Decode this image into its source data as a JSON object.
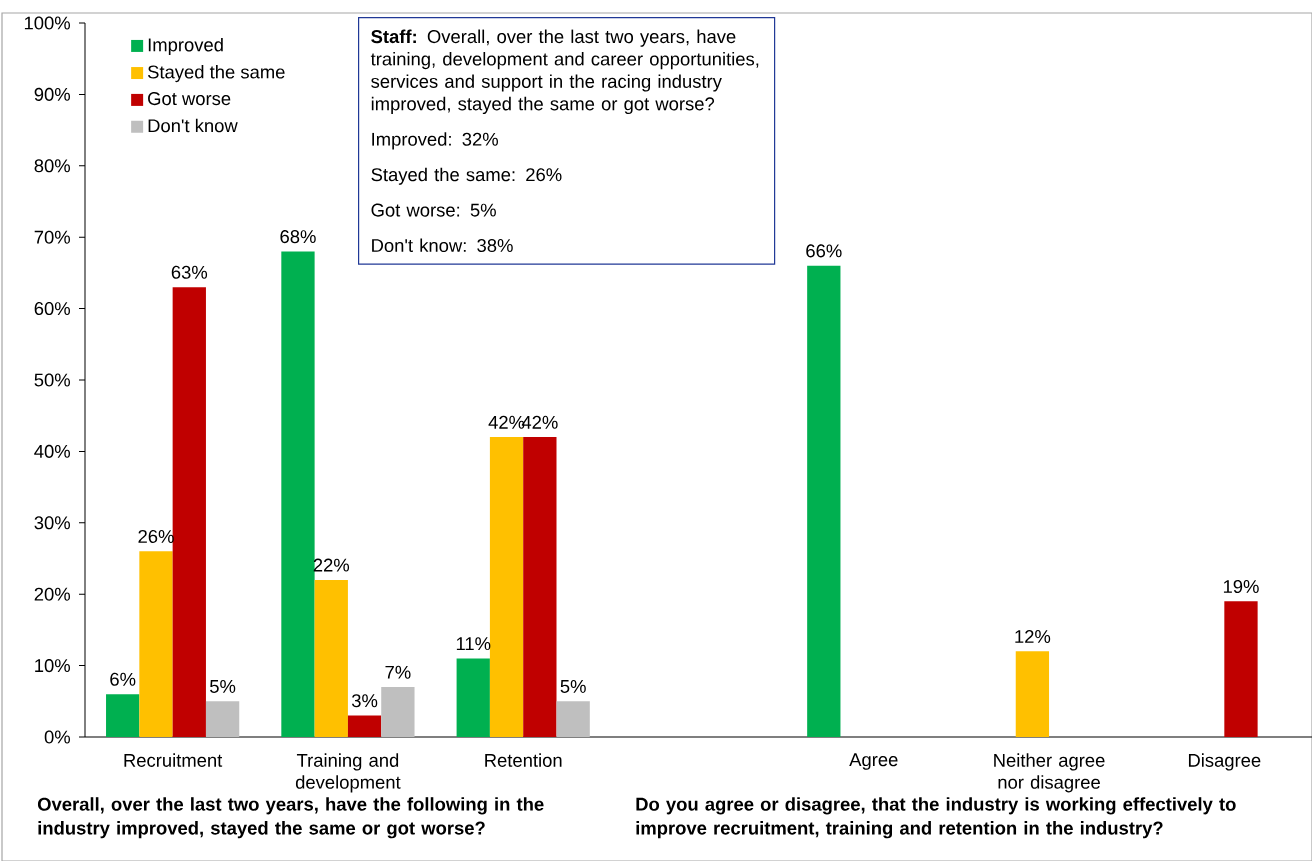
{
  "chart_data": {
    "type": "bar",
    "categories": [
      "Recruitment",
      "Training and development",
      "Retention",
      null,
      "Agree",
      "Neither agree nor disagree",
      "Disagree"
    ],
    "series": [
      {
        "name": "Improved",
        "color": "#00b050",
        "values": [
          6,
          68,
          11,
          null,
          66,
          null,
          null
        ],
        "value_labels": [
          "6%",
          "68%",
          "11%",
          null,
          "66%",
          null,
          null
        ]
      },
      {
        "name": "Stayed the same",
        "color": "#ffc000",
        "values": [
          26,
          22,
          42,
          null,
          null,
          12,
          null
        ],
        "value_labels": [
          "26%",
          "22%",
          "42%",
          null,
          null,
          "12%",
          null
        ]
      },
      {
        "name": "Got worse",
        "color": "#c00000",
        "values": [
          63,
          3,
          42,
          null,
          null,
          null,
          19
        ],
        "value_labels": [
          "63%",
          "3%",
          "42%",
          null,
          null,
          null,
          "19%"
        ]
      },
      {
        "name": "Don't know",
        "color": "#bfbfbf",
        "values": [
          5,
          7,
          5,
          null,
          null,
          null,
          null
        ],
        "value_labels": [
          "5%",
          "7%",
          "5%",
          null,
          null,
          null,
          null
        ]
      }
    ],
    "ylim": [
      0,
      100
    ],
    "yticks": [
      {
        "value": 0,
        "label": "0%"
      },
      {
        "value": 10,
        "label": "10%"
      },
      {
        "value": 20,
        "label": "20%"
      },
      {
        "value": 30,
        "label": "30%"
      },
      {
        "value": 40,
        "label": "40%"
      },
      {
        "value": 50,
        "label": "50%"
      },
      {
        "value": 60,
        "label": "60%"
      },
      {
        "value": 70,
        "label": "70%"
      },
      {
        "value": 80,
        "label": "80%"
      },
      {
        "value": 90,
        "label": "90%"
      },
      {
        "value": 100,
        "label": "100%"
      }
    ],
    "legend": "top left",
    "grid": false,
    "annotations": [
      "**Staff:** Overall, over the last two years, have training, development and career opportunities, services and support in the racing industry improved, stayed the same or got worse?",
      "Improved: 32%",
      "Stayed the same: 26%",
      "Got worse: 5%",
      "Don't know: 38%",
      "Overall, over the last two years, have the following in the industry improved, stayed the same or got worse?",
      "Do you agree or disagree, that the industry is working effectively to improve recruitment, training and retention in the industry?"
    ]
  }
}
